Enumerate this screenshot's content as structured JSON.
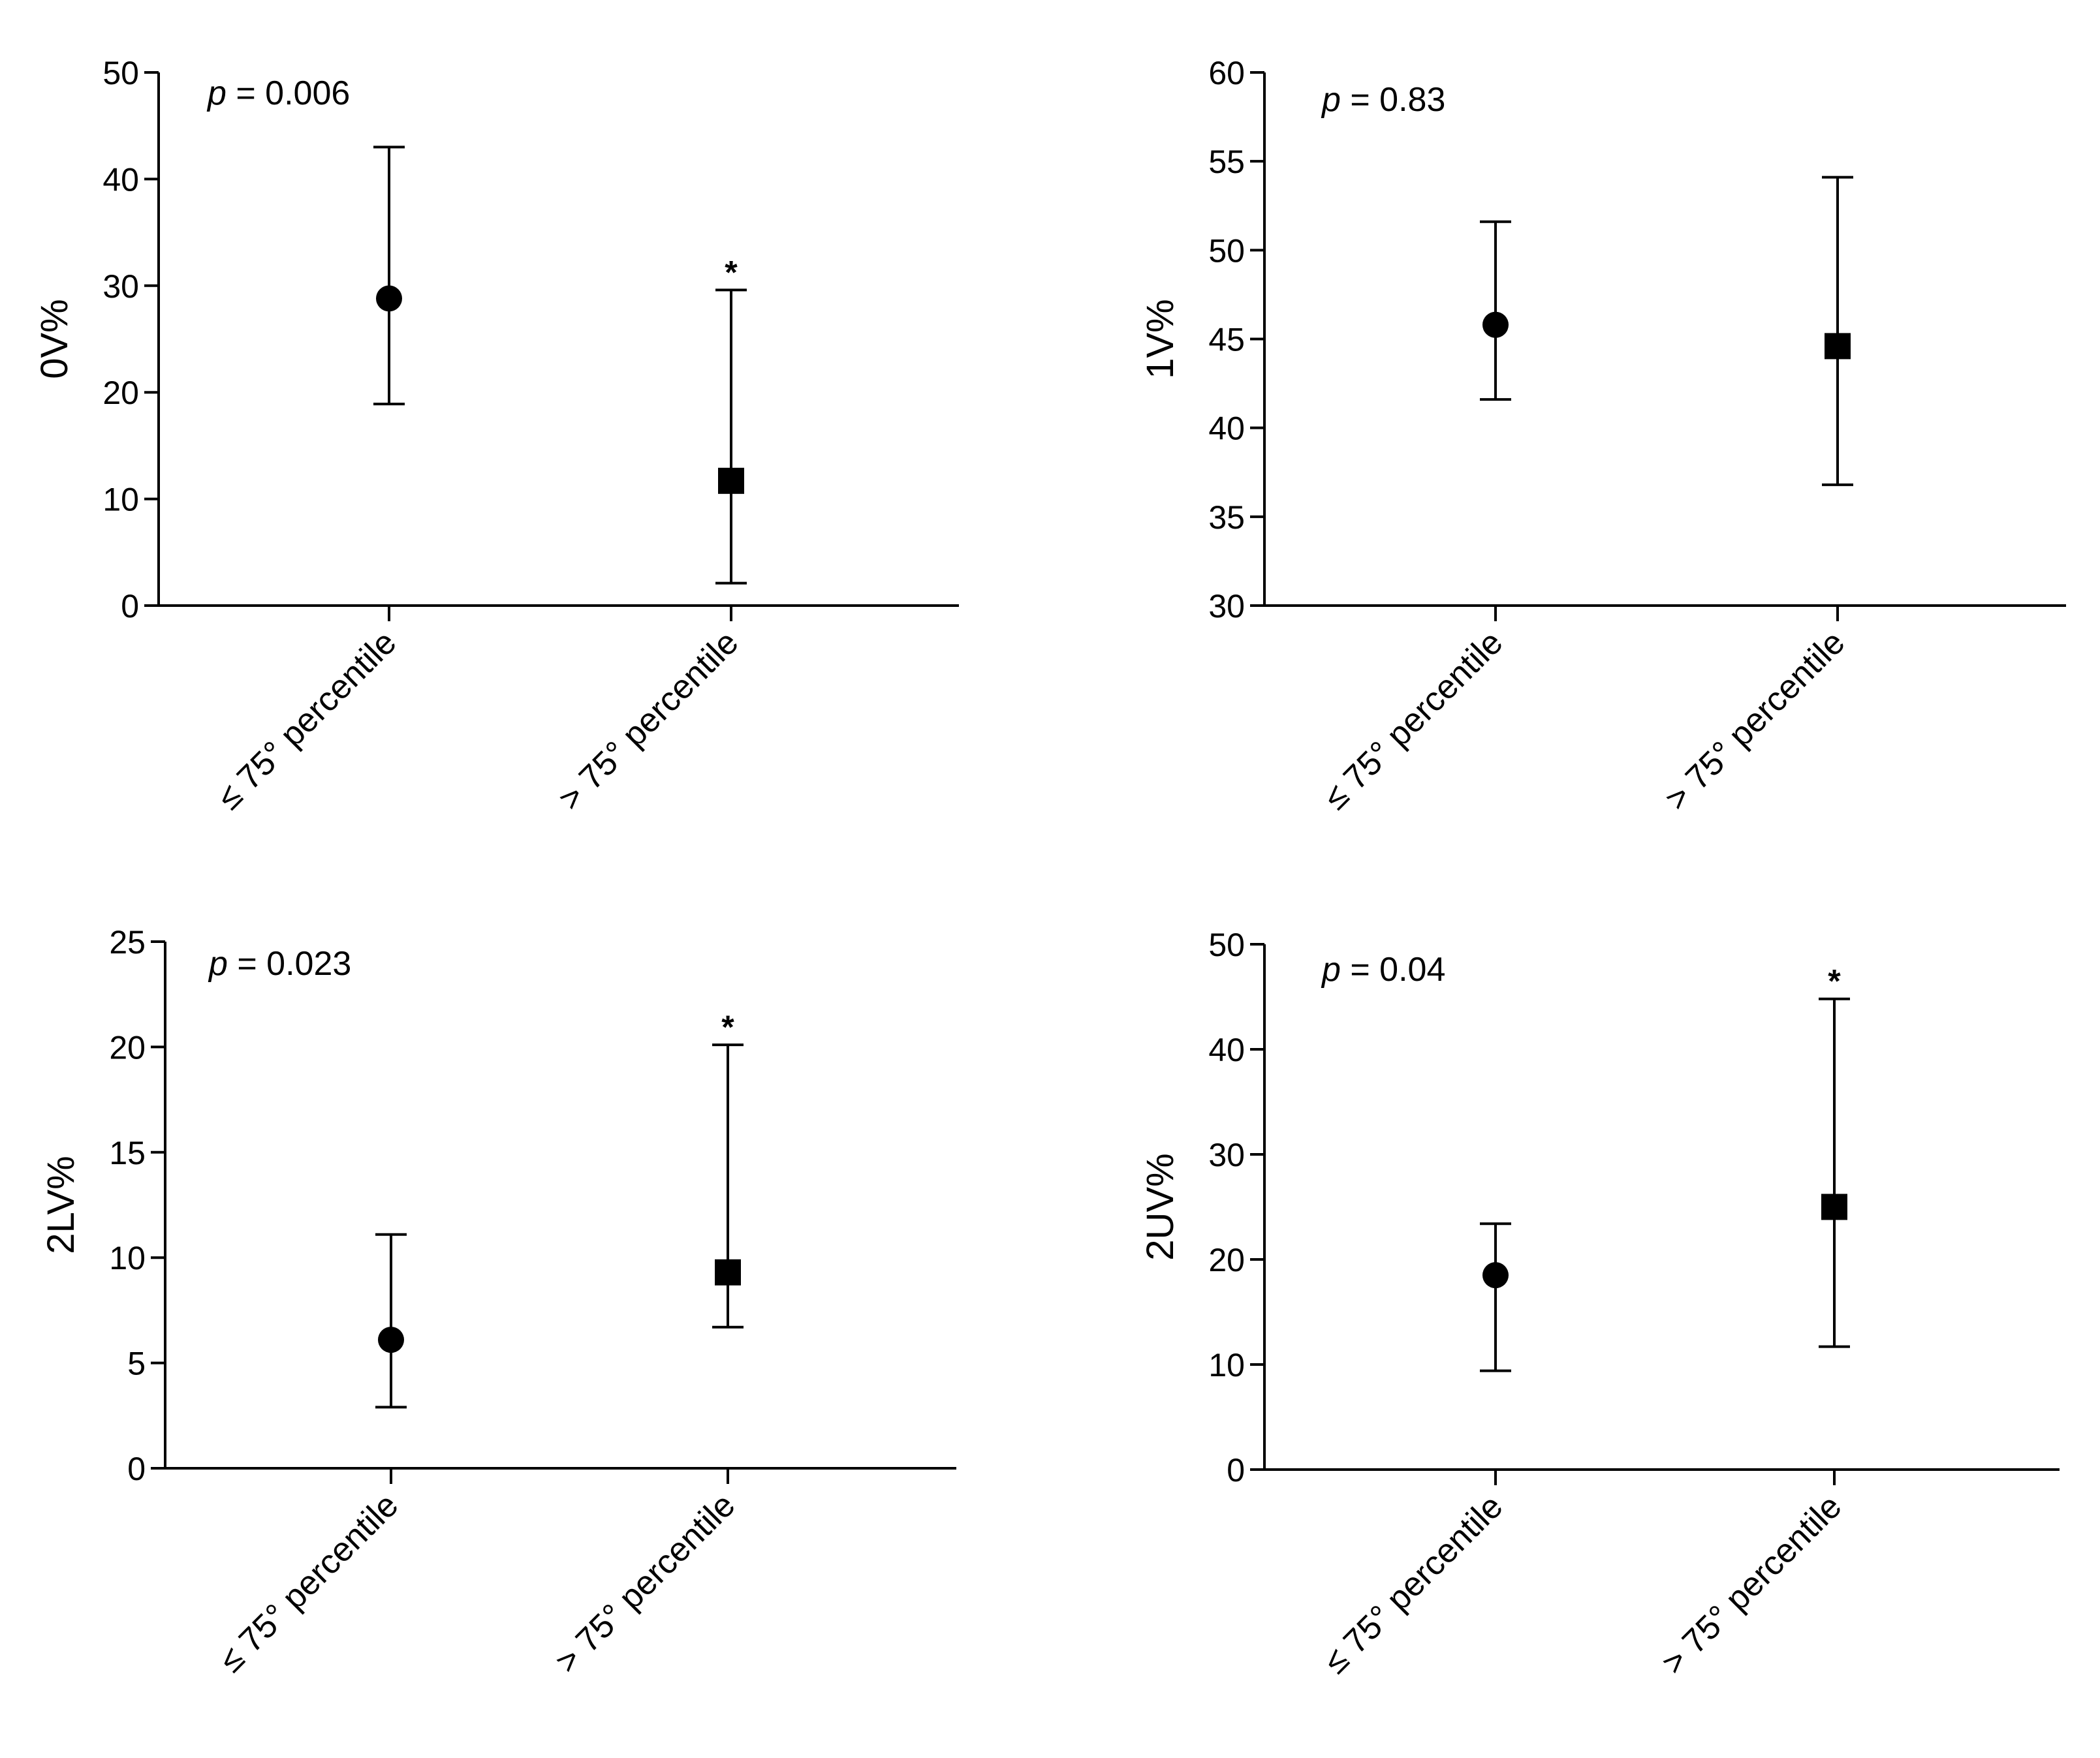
{
  "chart_data": [
    {
      "type": "scatter",
      "panel": "top-left",
      "ylabel": "0V%",
      "ylim": [
        0,
        50
      ],
      "yticks": [
        0,
        10,
        20,
        30,
        40,
        50
      ],
      "categories": [
        "≤ 75° percentile",
        "> 75° percentile"
      ],
      "p_prefix": "p",
      "p_text": " = 0.006",
      "points": [
        {
          "category": "≤ 75° percentile",
          "marker": "circle",
          "value": 28.8,
          "lower": 18.9,
          "upper": 43.0,
          "star": ""
        },
        {
          "category": "> 75° percentile",
          "marker": "square",
          "value": 11.7,
          "lower": 2.1,
          "upper": 29.6,
          "star": "*"
        }
      ]
    },
    {
      "type": "scatter",
      "panel": "top-right",
      "ylabel": "1V%",
      "ylim": [
        30,
        60
      ],
      "yticks": [
        30,
        35,
        40,
        45,
        50,
        55,
        60
      ],
      "categories": [
        "≤ 75° percentile",
        "> 75° percentile"
      ],
      "p_prefix": "p",
      "p_text": " = 0.83",
      "points": [
        {
          "category": "≤ 75° percentile",
          "marker": "circle",
          "value": 45.8,
          "lower": 41.6,
          "upper": 51.6,
          "star": ""
        },
        {
          "category": "> 75° percentile",
          "marker": "square",
          "value": 44.6,
          "lower": 36.8,
          "upper": 54.1,
          "star": ""
        }
      ]
    },
    {
      "type": "scatter",
      "panel": "bottom-left",
      "ylabel": "2LV%",
      "ylim": [
        0,
        25
      ],
      "yticks": [
        0,
        5,
        10,
        15,
        20,
        25
      ],
      "categories": [
        "≤ 75° percentile",
        "> 75° percentile"
      ],
      "p_prefix": "p",
      "p_text": " = 0.023",
      "points": [
        {
          "category": "≤ 75° percentile",
          "marker": "circle",
          "value": 6.1,
          "lower": 2.9,
          "upper": 11.1,
          "star": ""
        },
        {
          "category": "> 75° percentile",
          "marker": "square",
          "value": 9.3,
          "lower": 6.7,
          "upper": 20.1,
          "star": "*"
        }
      ]
    },
    {
      "type": "scatter",
      "panel": "bottom-right",
      "ylabel": "2UV%",
      "ylim": [
        0,
        50
      ],
      "yticks": [
        0,
        10,
        20,
        30,
        40,
        50
      ],
      "categories": [
        "≤ 75° percentile",
        "> 75° percentile"
      ],
      "p_prefix": "p",
      "p_text": " = 0.04",
      "points": [
        {
          "category": "≤ 75° percentile",
          "marker": "circle",
          "value": 18.5,
          "lower": 9.4,
          "upper": 23.4,
          "star": ""
        },
        {
          "category": "> 75° percentile",
          "marker": "square",
          "value": 25.0,
          "lower": 11.7,
          "upper": 44.8,
          "star": "*"
        }
      ]
    }
  ]
}
